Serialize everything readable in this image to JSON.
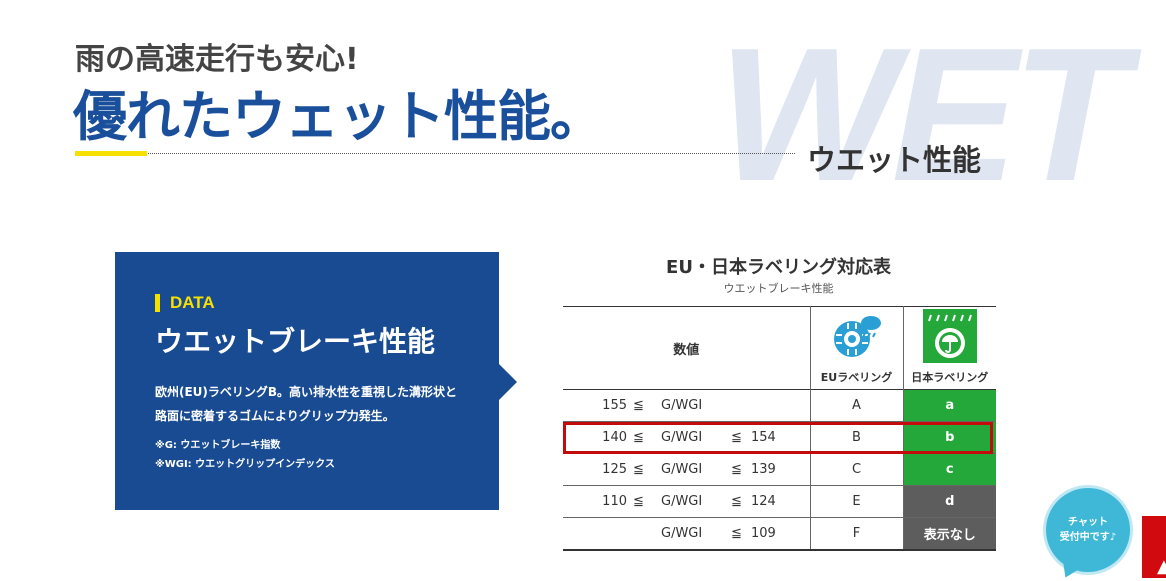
{
  "header": {
    "background_word": "WET",
    "subtitle": "雨の高速走行も安心!",
    "title": "優れたウェット性能。",
    "section_label": "ウエット性能"
  },
  "data_box": {
    "tag": "DATA",
    "heading": "ウエットブレーキ性能",
    "description_line1": "欧州(EU)ラベリングB。高い排水性を重視した溝形状と",
    "description_line2": "路面に密着するゴムによりグリップ力発生。",
    "note_g": "※G: ウエットブレーキ指数",
    "note_wgi": "※WGI: ウエットグリップインデックス"
  },
  "table": {
    "title": "EU・日本ラベリング対応表",
    "subtitle": "ウエットブレーキ性能",
    "headers": {
      "value": "数値",
      "eu": "EUラベリング",
      "jp": "日本ラベリング"
    },
    "icons": {
      "eu": "eu-wet-tire-icon",
      "jp": "jp-wet-grip-icon"
    },
    "rows": [
      {
        "min": "155",
        "op": "≦",
        "mid": "G/WGI",
        "op2": "",
        "max": "",
        "eu": "A",
        "jp": "a",
        "jp_color": "#23a839"
      },
      {
        "min": "140",
        "op": "≦",
        "mid": "G/WGI",
        "op2": "≦",
        "max": "154",
        "eu": "B",
        "jp": "b",
        "jp_color": "#23a839"
      },
      {
        "min": "125",
        "op": "≦",
        "mid": "G/WGI",
        "op2": "≦",
        "max": "139",
        "eu": "C",
        "jp": "c",
        "jp_color": "#23a839"
      },
      {
        "min": "110",
        "op": "≦",
        "mid": "G/WGI",
        "op2": "≦",
        "max": "124",
        "eu": "E",
        "jp": "d",
        "jp_color": "#5d5d5d"
      },
      {
        "min": "",
        "op": "",
        "mid": "G/WGI",
        "op2": "≦",
        "max": "109",
        "eu": "F",
        "jp": "表示なし",
        "jp_color": "#5d5d5d"
      }
    ],
    "highlighted_row": 1
  },
  "chat": {
    "line1": "チャット",
    "line2": "受付中です♪"
  },
  "colors": {
    "brand_blue": "#1a4f9b",
    "accent_yellow": "#f5e000",
    "highlight_red": "#c40b0b",
    "jp_green": "#23a839",
    "jp_gray": "#5d5d5d",
    "chat_cyan": "#3fb8d8"
  }
}
